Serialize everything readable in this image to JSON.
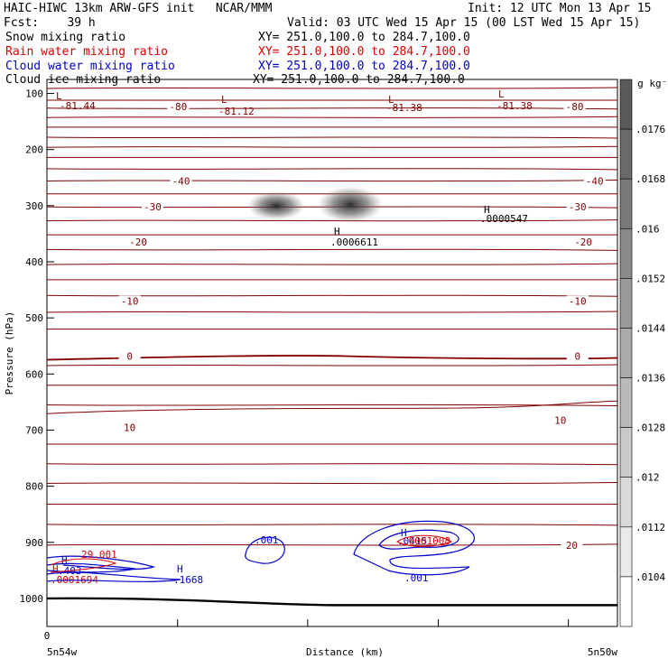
{
  "header": {
    "title": "HAIC-HIWC 13km ARW-GFS init",
    "org": "NCAR/MMM",
    "init": "Init: 12 UTC Mon 13 Apr 15",
    "fcst_label": "Fcst:",
    "fcst_value": "39 h",
    "valid": "Valid: 03 UTC Wed 15 Apr 15 (00 LST Wed 15 Apr 15)"
  },
  "legend": [
    {
      "name": "Snow mixing ratio",
      "xy": "XY= 251.0,100.0 to 284.7,100.0",
      "color": "#000000"
    },
    {
      "name": "Rain water mixing ratio",
      "xy": "XY= 251.0,100.0 to 284.7,100.0",
      "color": "#dd0000"
    },
    {
      "name": "Cloud water mixing ratio",
      "xy": "XY= 251.0,100.0 to 284.7,100.0",
      "color": "#0000cc"
    },
    {
      "name": "Cloud ice mixing ratio",
      "xy": "XY= 251.0,100.0 to 284.7,100.0",
      "color": "#000000"
    }
  ],
  "chart_data": {
    "type": "line",
    "xlabel": "Distance (km)",
    "ylabel": "Pressure (hPa)",
    "x_start_label": "5n54w",
    "x_end_label": "5n50w",
    "x_zero_label": "0",
    "y_ticks": [
      100,
      200,
      300,
      400,
      500,
      600,
      700,
      800,
      900,
      1000
    ],
    "ylim": [
      1050,
      75
    ],
    "colorbar": {
      "unit": "g kg⁻¹",
      "labels": [
        ".0176",
        ".0168",
        ".016",
        ".0152",
        ".0144",
        ".0136",
        ".0128",
        ".012",
        ".0112",
        ".0104"
      ]
    },
    "temperature_color": "#800000",
    "temperature_label_values": [
      {
        "text": "-80",
        "x": 0.23,
        "p": 123
      },
      {
        "text": "-80",
        "x": 0.925,
        "p": 123
      },
      {
        "text": "-40",
        "x": 0.235,
        "p": 256
      },
      {
        "text": "-40",
        "x": 0.96,
        "p": 256
      },
      {
        "text": "-30",
        "x": 0.185,
        "p": 302
      },
      {
        "text": "-30",
        "x": 0.93,
        "p": 302
      },
      {
        "text": "-20",
        "x": 0.16,
        "p": 365
      },
      {
        "text": "-20",
        "x": 0.94,
        "p": 365
      },
      {
        "text": "-10",
        "x": 0.145,
        "p": 470
      },
      {
        "text": "-10",
        "x": 0.93,
        "p": 470
      },
      {
        "text": "0",
        "x": 0.145,
        "p": 568
      },
      {
        "text": "0",
        "x": 0.93,
        "p": 568
      },
      {
        "text": "10",
        "x": 0.145,
        "p": 695
      },
      {
        "text": "10",
        "x": 0.9,
        "p": 682
      },
      {
        "text": "20",
        "x": 0.92,
        "p": 905
      }
    ],
    "lows": [
      {
        "label": "L",
        "value": "-81.44",
        "x": 0.04
      },
      {
        "label": "L",
        "value": "-81.12",
        "x": 0.7
      },
      {
        "label": "L",
        "value": "-81.38",
        "x": 1.3
      },
      {
        "label": "L",
        "value": "-81.38",
        "x": 1.75
      }
    ],
    "highs": [
      {
        "label": "H",
        "value": ".0000547",
        "color": "#000000"
      },
      {
        "label": "H",
        "value": ".0006611",
        "color": "#000000"
      },
      {
        "label": "H",
        "value": ".403",
        "color": "#0000cc"
      },
      {
        "label": "H",
        "value": ".1668",
        "color": "#0000cc"
      },
      {
        "label": "H",
        "value": ".0001694",
        "color": "#dd0000"
      },
      {
        "label": "H",
        "value": ".0415",
        "color": "#0000cc"
      }
    ],
    "cloud_water_labels": [
      ".001",
      ".001"
    ],
    "rain_labels": [
      "29.001",
      ".0001008"
    ]
  }
}
